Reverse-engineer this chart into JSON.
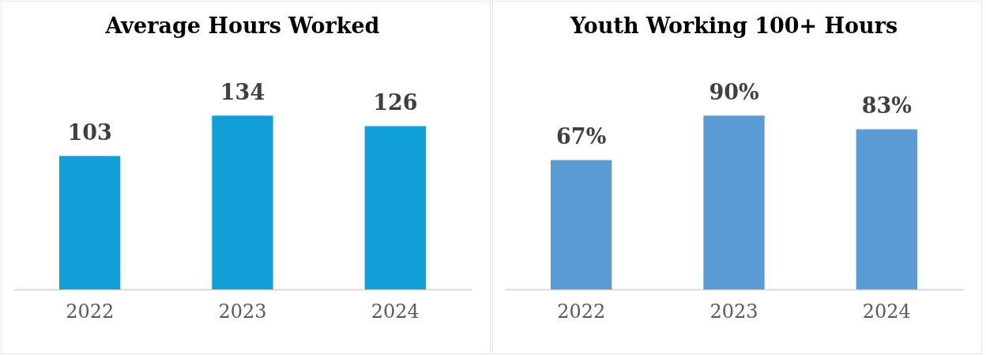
{
  "chart_data": [
    {
      "type": "bar",
      "title": "Average Hours Worked",
      "categories": [
        "2022",
        "2023",
        "2024"
      ],
      "values": [
        103,
        134,
        126
      ],
      "color": "#129fd7",
      "data_labels": true
    },
    {
      "type": "bar",
      "title": "Youth Working 100+ Hours",
      "categories": [
        "2022",
        "2023",
        "2024"
      ],
      "values": [
        67,
        90,
        83
      ],
      "color": "#5b9bd5",
      "value_labels": [
        "67%",
        "90%",
        "83%"
      ]
    }
  ]
}
